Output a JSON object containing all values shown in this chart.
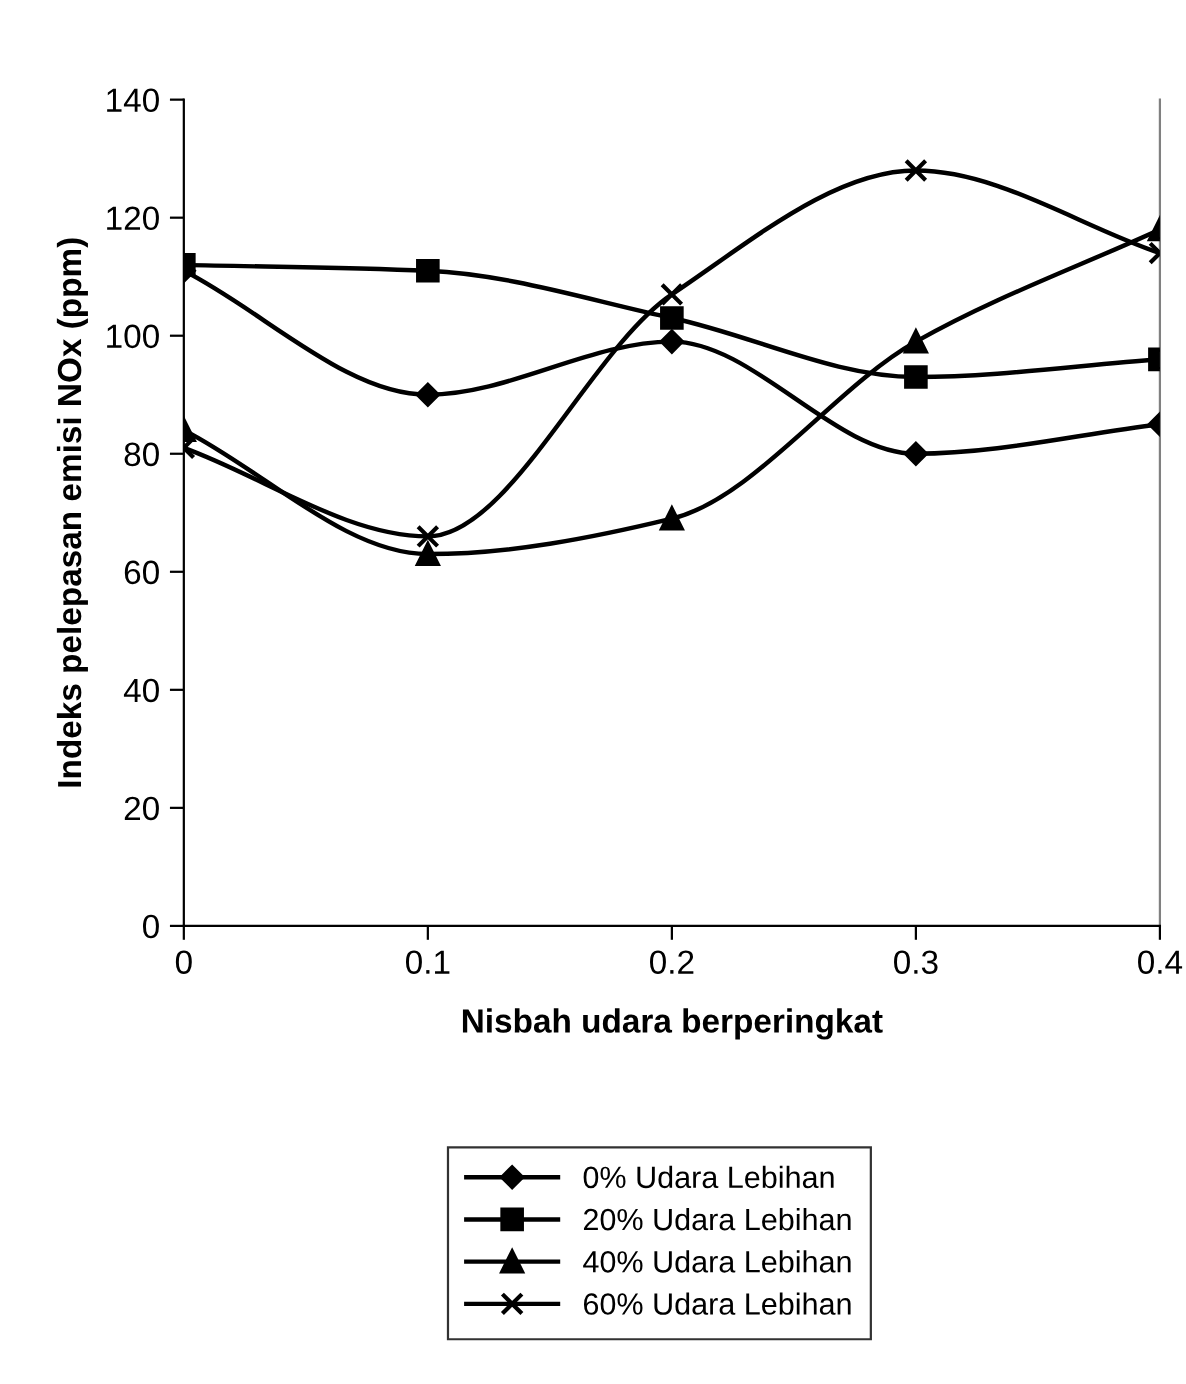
{
  "chart_data": {
    "type": "line",
    "xlabel": "Nisbah udara berperingkat",
    "ylabel": "Indeks pelepasan emisi NOx (ppm)",
    "x": [
      0,
      0.1,
      0.2,
      0.3,
      0.4
    ],
    "xlim": [
      0,
      0.4
    ],
    "xticks": [
      0,
      0.1,
      0.2,
      0.3,
      0.4
    ],
    "ylim": [
      0,
      140
    ],
    "yticks": [
      0,
      20,
      40,
      60,
      80,
      100,
      120,
      140
    ],
    "grid": false,
    "legend": "bottom",
    "line_style": "solid",
    "series": [
      {
        "name": "0% Udara Lebihan",
        "color": "#000000",
        "marker": "diamond",
        "values": [
          111,
          90,
          99,
          80,
          85
        ]
      },
      {
        "name": "20% Udara Lebihan",
        "color": "#000000",
        "marker": "square",
        "values": [
          112,
          111,
          103,
          93,
          96
        ]
      },
      {
        "name": "40% Udara Lebihan",
        "color": "#000000",
        "marker": "triangle",
        "values": [
          84,
          63,
          69,
          99,
          118
        ]
      },
      {
        "name": "60% Udara Lebihan",
        "color": "#000000",
        "marker": "cross",
        "values": [
          81,
          66,
          107,
          128,
          114
        ]
      }
    ]
  }
}
